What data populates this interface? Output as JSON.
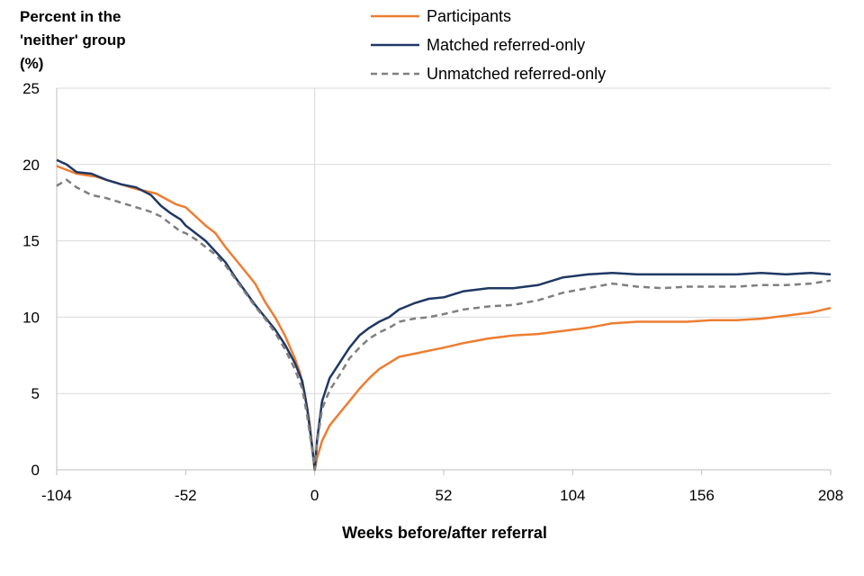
{
  "chart_data": {
    "type": "line",
    "title": "",
    "ylabel_lines": [
      "Percent in  the",
      "'neither' group",
      "(%)"
    ],
    "xlabel": "Weeks before/after referral",
    "xlim": [
      -104,
      208
    ],
    "ylim": [
      0,
      25
    ],
    "x_ticks": [
      -104,
      -52,
      0,
      52,
      104,
      156,
      208
    ],
    "y_ticks": [
      0,
      5,
      10,
      15,
      20,
      25
    ],
    "vertical_reference_line": 0,
    "grid": "horizontal",
    "legend_position": "top-center",
    "series": [
      {
        "name": "Participants",
        "color": "#ED7D31",
        "dash": "solid",
        "points": [
          [
            -104,
            19.9
          ],
          [
            -96,
            19.4
          ],
          [
            -88,
            19.2
          ],
          [
            -80,
            18.8
          ],
          [
            -72,
            18.4
          ],
          [
            -64,
            18.1
          ],
          [
            -56,
            17.4
          ],
          [
            -52,
            17.2
          ],
          [
            -48,
            16.6
          ],
          [
            -44,
            16.0
          ],
          [
            -40,
            15.5
          ],
          [
            -36,
            14.6
          ],
          [
            -32,
            13.8
          ],
          [
            -28,
            13.0
          ],
          [
            -24,
            12.2
          ],
          [
            -20,
            11.0
          ],
          [
            -16,
            10.0
          ],
          [
            -12,
            8.8
          ],
          [
            -8,
            7.3
          ],
          [
            -6,
            6.4
          ],
          [
            -4,
            5.0
          ],
          [
            -2,
            3.0
          ],
          [
            -1,
            1.5
          ],
          [
            0,
            0
          ],
          [
            1,
            0.8
          ],
          [
            3,
            1.9
          ],
          [
            6,
            2.9
          ],
          [
            10,
            3.7
          ],
          [
            14,
            4.5
          ],
          [
            18,
            5.3
          ],
          [
            22,
            6.0
          ],
          [
            26,
            6.6
          ],
          [
            30,
            7.0
          ],
          [
            34,
            7.4
          ],
          [
            40,
            7.6
          ],
          [
            46,
            7.8
          ],
          [
            52,
            8.0
          ],
          [
            60,
            8.3
          ],
          [
            70,
            8.6
          ],
          [
            80,
            8.8
          ],
          [
            90,
            8.9
          ],
          [
            100,
            9.1
          ],
          [
            110,
            9.3
          ],
          [
            120,
            9.6
          ],
          [
            130,
            9.7
          ],
          [
            140,
            9.7
          ],
          [
            150,
            9.7
          ],
          [
            160,
            9.8
          ],
          [
            170,
            9.8
          ],
          [
            180,
            9.9
          ],
          [
            190,
            10.1
          ],
          [
            200,
            10.3
          ],
          [
            208,
            10.6
          ]
        ]
      },
      {
        "name": "Matched referred-only",
        "color": "#1F3864",
        "dash": "solid",
        "points": [
          [
            -104,
            20.3
          ],
          [
            -100,
            20.0
          ],
          [
            -96,
            19.5
          ],
          [
            -90,
            19.4
          ],
          [
            -84,
            19.0
          ],
          [
            -78,
            18.7
          ],
          [
            -72,
            18.5
          ],
          [
            -66,
            18.0
          ],
          [
            -62,
            17.3
          ],
          [
            -58,
            16.8
          ],
          [
            -54,
            16.4
          ],
          [
            -52,
            16.0
          ],
          [
            -48,
            15.5
          ],
          [
            -44,
            15.0
          ],
          [
            -40,
            14.3
          ],
          [
            -36,
            13.6
          ],
          [
            -32,
            12.6
          ],
          [
            -28,
            11.7
          ],
          [
            -24,
            10.8
          ],
          [
            -20,
            10.0
          ],
          [
            -16,
            9.2
          ],
          [
            -12,
            8.2
          ],
          [
            -8,
            7.0
          ],
          [
            -5,
            5.8
          ],
          [
            -3,
            4.0
          ],
          [
            -1,
            1.5
          ],
          [
            0,
            0
          ],
          [
            1,
            2.0
          ],
          [
            3,
            4.5
          ],
          [
            6,
            6.0
          ],
          [
            10,
            7.0
          ],
          [
            14,
            8.0
          ],
          [
            18,
            8.8
          ],
          [
            22,
            9.3
          ],
          [
            26,
            9.7
          ],
          [
            30,
            10.0
          ],
          [
            34,
            10.5
          ],
          [
            40,
            10.9
          ],
          [
            46,
            11.2
          ],
          [
            52,
            11.3
          ],
          [
            60,
            11.7
          ],
          [
            70,
            11.9
          ],
          [
            80,
            11.9
          ],
          [
            90,
            12.1
          ],
          [
            100,
            12.6
          ],
          [
            110,
            12.8
          ],
          [
            120,
            12.9
          ],
          [
            130,
            12.8
          ],
          [
            140,
            12.8
          ],
          [
            150,
            12.8
          ],
          [
            160,
            12.8
          ],
          [
            170,
            12.8
          ],
          [
            180,
            12.9
          ],
          [
            190,
            12.8
          ],
          [
            200,
            12.9
          ],
          [
            208,
            12.8
          ]
        ]
      },
      {
        "name": "Unmatched referred-only",
        "color": "#7F7F7F",
        "dash": "dashed",
        "points": [
          [
            -104,
            18.6
          ],
          [
            -100,
            19.0
          ],
          [
            -96,
            18.5
          ],
          [
            -90,
            18.0
          ],
          [
            -84,
            17.8
          ],
          [
            -78,
            17.5
          ],
          [
            -72,
            17.2
          ],
          [
            -66,
            16.9
          ],
          [
            -62,
            16.6
          ],
          [
            -58,
            16.1
          ],
          [
            -54,
            15.6
          ],
          [
            -52,
            15.5
          ],
          [
            -48,
            15.1
          ],
          [
            -44,
            14.6
          ],
          [
            -40,
            14.1
          ],
          [
            -36,
            13.4
          ],
          [
            -32,
            12.5
          ],
          [
            -28,
            11.6
          ],
          [
            -24,
            10.7
          ],
          [
            -20,
            9.9
          ],
          [
            -16,
            9.0
          ],
          [
            -12,
            7.9
          ],
          [
            -8,
            6.6
          ],
          [
            -5,
            5.3
          ],
          [
            -3,
            3.5
          ],
          [
            -1,
            1.3
          ],
          [
            0,
            0
          ],
          [
            1,
            1.8
          ],
          [
            3,
            4.0
          ],
          [
            6,
            5.2
          ],
          [
            10,
            6.2
          ],
          [
            14,
            7.3
          ],
          [
            18,
            8.0
          ],
          [
            22,
            8.6
          ],
          [
            26,
            9.0
          ],
          [
            30,
            9.3
          ],
          [
            34,
            9.7
          ],
          [
            40,
            9.9
          ],
          [
            46,
            10.0
          ],
          [
            52,
            10.2
          ],
          [
            60,
            10.5
          ],
          [
            70,
            10.7
          ],
          [
            80,
            10.8
          ],
          [
            90,
            11.1
          ],
          [
            100,
            11.6
          ],
          [
            110,
            11.9
          ],
          [
            120,
            12.2
          ],
          [
            130,
            12.0
          ],
          [
            140,
            11.9
          ],
          [
            150,
            12.0
          ],
          [
            160,
            12.0
          ],
          [
            170,
            12.0
          ],
          [
            180,
            12.1
          ],
          [
            190,
            12.1
          ],
          [
            200,
            12.2
          ],
          [
            208,
            12.4
          ]
        ]
      }
    ]
  }
}
